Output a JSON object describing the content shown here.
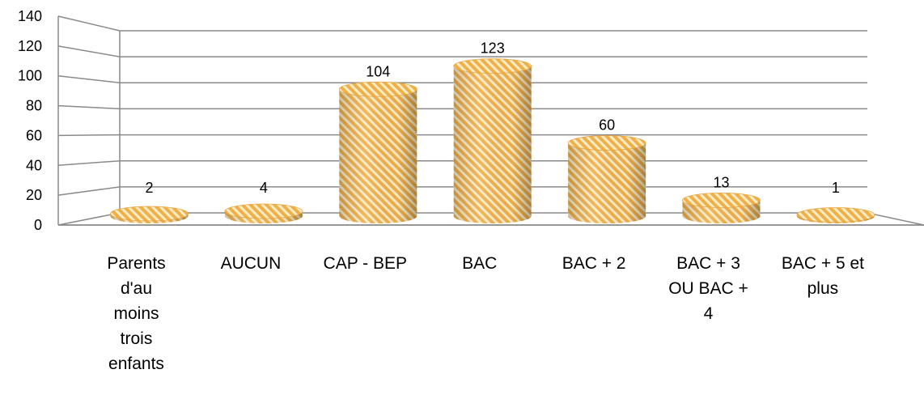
{
  "chart_data": {
    "type": "bar",
    "style": "3d-cylinder",
    "categories": [
      "Parents d'au moins trois enfants",
      "AUCUN",
      "CAP - BEP",
      "BAC",
      "BAC + 2",
      "BAC + 3 OU BAC + 4",
      "BAC + 5 et plus"
    ],
    "category_lines": [
      [
        "Parents",
        "d'au",
        "moins",
        "trois",
        "enfants"
      ],
      [
        "AUCUN"
      ],
      [
        "CAP - BEP"
      ],
      [
        "BAC"
      ],
      [
        "BAC + 2"
      ],
      [
        "BAC + 3",
        "OU BAC +",
        "4"
      ],
      [
        "BAC + 5 et",
        "plus"
      ]
    ],
    "values": [
      2,
      4,
      104,
      123,
      60,
      13,
      1
    ],
    "data_labels": [
      "2",
      "4",
      "104",
      "123",
      "60",
      "13",
      "1"
    ],
    "yticks": [
      "0",
      "20",
      "40",
      "60",
      "80",
      "100",
      "120",
      "140"
    ],
    "ylim": [
      0,
      140
    ],
    "grid": true,
    "legend": "none",
    "title": "",
    "xlabel": "",
    "ylabel": "",
    "colors": {
      "bar_main": "#f0b048",
      "bar_stripe": "#fcecc8",
      "bar_dark": "#d08a20",
      "grid": "#8a8a8a"
    }
  }
}
